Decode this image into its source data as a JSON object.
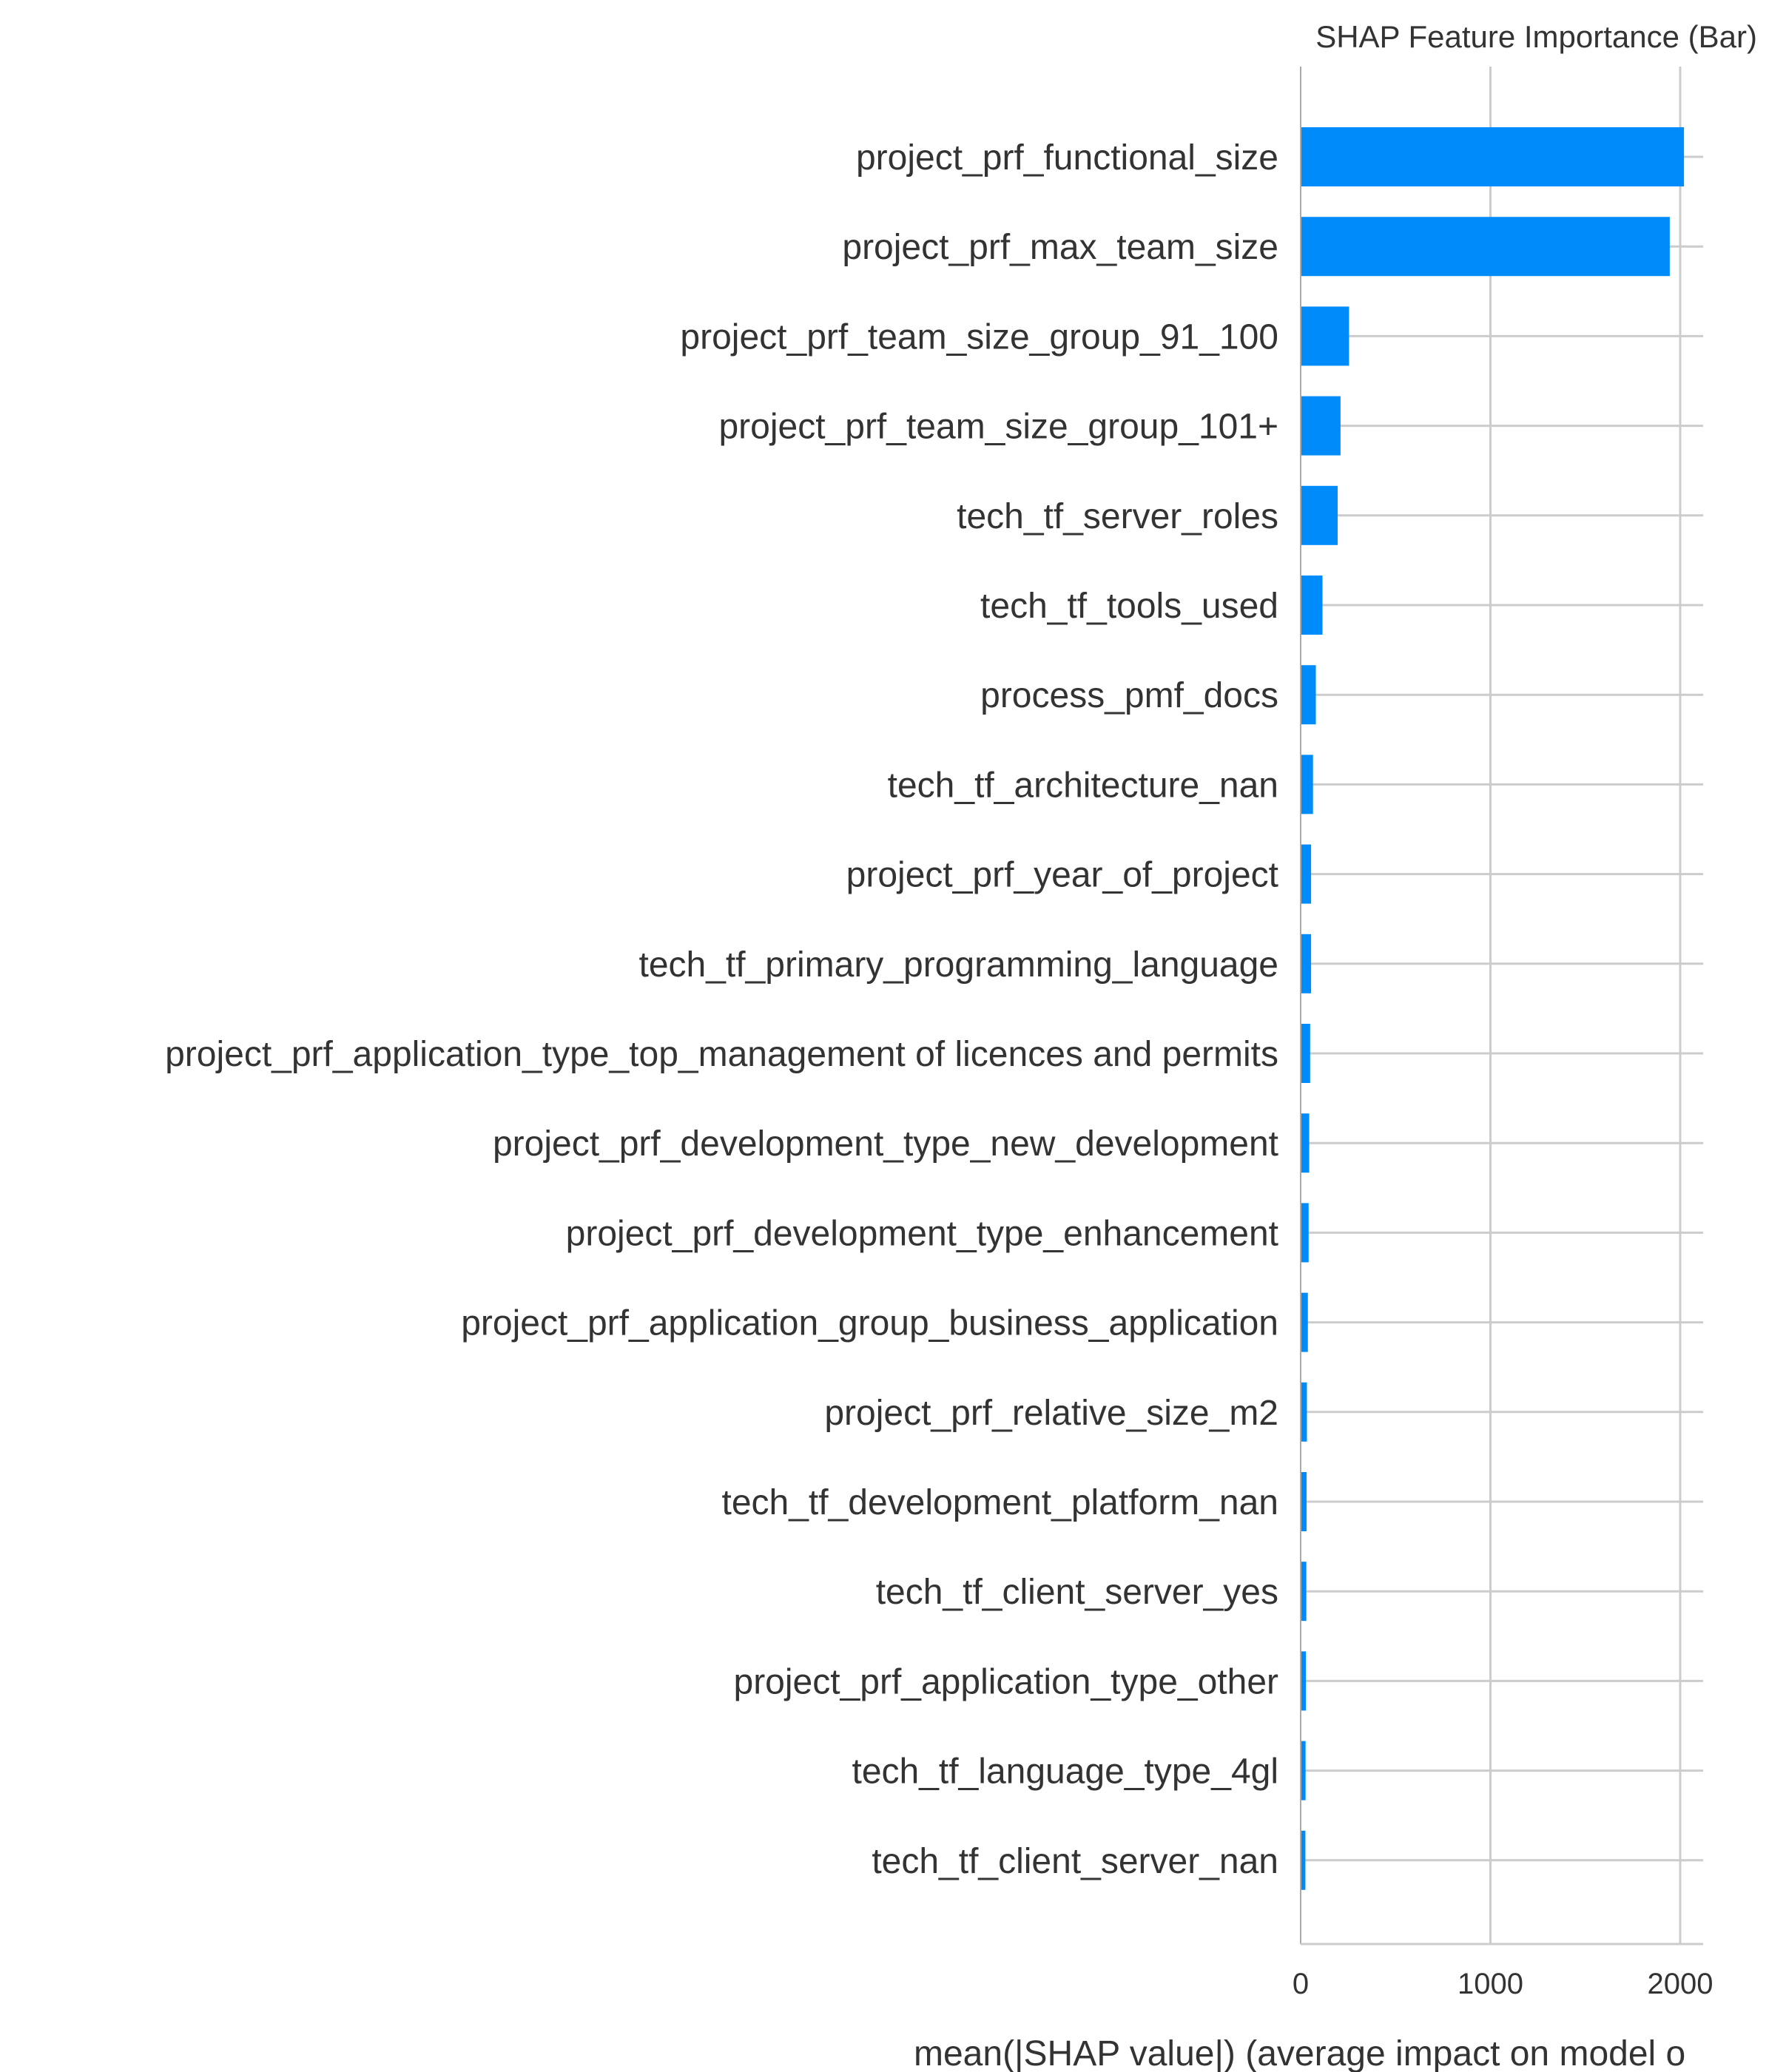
{
  "chart_data": {
    "type": "bar",
    "orientation": "horizontal",
    "title": "SHAP Feature Importance (Bar)",
    "xlabel": "mean(|SHAP value|) (average impact on model o",
    "ylabel": "",
    "xlim": [
      0,
      2100
    ],
    "xticks": [
      0,
      1000,
      2000
    ],
    "xtick_labels": [
      "0",
      "1000",
      "2000"
    ],
    "grid": true,
    "bar_color": "#008bfb",
    "categories": [
      "project_prf_functional_size",
      "project_prf_max_team_size",
      "project_prf_team_size_group_91_100",
      "project_prf_team_size_group_101+",
      "tech_tf_server_roles",
      "tech_tf_tools_used",
      "process_pmf_docs",
      "tech_tf_architecture_nan",
      "project_prf_year_of_project",
      "tech_tf_primary_programming_language",
      "project_prf_application_type_top_management of licences and permits",
      "project_prf_development_type_new_development",
      "project_prf_development_type_enhancement",
      "project_prf_application_group_business_application",
      "project_prf_relative_size_m2",
      "tech_tf_development_platform_nan",
      "tech_tf_client_server_yes",
      "project_prf_application_type_other",
      "tech_tf_language_type_4gl",
      "tech_tf_client_server_nan"
    ],
    "values": [
      2020,
      1945,
      255,
      210,
      195,
      115,
      80,
      65,
      55,
      55,
      50,
      45,
      42,
      38,
      33,
      31,
      30,
      28,
      26,
      25
    ]
  }
}
